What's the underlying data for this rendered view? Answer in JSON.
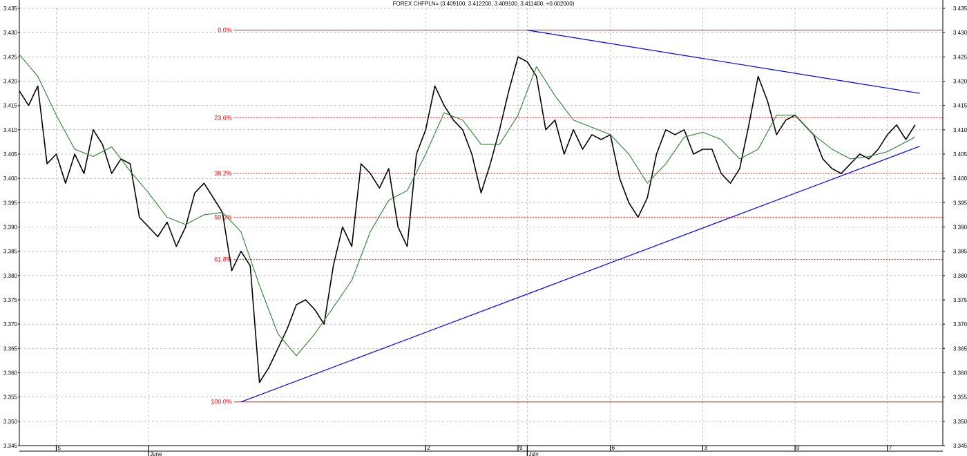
{
  "chart_data": {
    "type": "line",
    "title": "FOREX CHFPLN= (3.409100, 3.412200, 3.409100, 3.411400, +0.002000)",
    "ylim": [
      3.345,
      3.435
    ],
    "y_ticks": [
      "3.345",
      "3.350",
      "3.355",
      "3.360",
      "3.365",
      "3.370",
      "3.375",
      "3.380",
      "3.385",
      "3.390",
      "3.395",
      "3.400",
      "3.405",
      "3.410",
      "3.415",
      "3.420",
      "3.425",
      "3.430",
      "3.435"
    ],
    "x_day_labels": [
      {
        "label": "5",
        "t": 4
      },
      {
        "label": "2",
        "t": 44
      },
      {
        "label": "9",
        "t": 54
      },
      {
        "label": "6",
        "t": 64
      },
      {
        "label": "3",
        "t": 74
      },
      {
        "label": "0",
        "t": 84
      },
      {
        "label": "7",
        "t": 94
      }
    ],
    "x_month_labels": [
      {
        "label": "June",
        "t": 14
      },
      {
        "label": "July",
        "t": 55
      }
    ],
    "grid": true,
    "series": [
      {
        "name": "",
        "color": "#000000",
        "points": [
          [
            0,
            3.418
          ],
          [
            1,
            3.415
          ],
          [
            2,
            3.419
          ],
          [
            3,
            3.403
          ],
          [
            4,
            3.405
          ],
          [
            5,
            3.399
          ],
          [
            6,
            3.405
          ],
          [
            7,
            3.401
          ],
          [
            8,
            3.41
          ],
          [
            9,
            3.407
          ],
          [
            10,
            3.401
          ],
          [
            11,
            3.404
          ],
          [
            12,
            3.403
          ],
          [
            13,
            3.392
          ],
          [
            14,
            3.39
          ],
          [
            15,
            3.388
          ],
          [
            16,
            3.391
          ],
          [
            17,
            3.386
          ],
          [
            18,
            3.39
          ],
          [
            19,
            3.397
          ],
          [
            20,
            3.399
          ],
          [
            21,
            3.396
          ],
          [
            22,
            3.393
          ],
          [
            23,
            3.381
          ],
          [
            24,
            3.385
          ],
          [
            25,
            3.382
          ],
          [
            26,
            3.358
          ],
          [
            27,
            3.361
          ],
          [
            28,
            3.365
          ],
          [
            29,
            3.369
          ],
          [
            30,
            3.374
          ],
          [
            31,
            3.375
          ],
          [
            32,
            3.373
          ],
          [
            33,
            3.37
          ],
          [
            34,
            3.382
          ],
          [
            35,
            3.39
          ],
          [
            36,
            3.386
          ],
          [
            37,
            3.403
          ],
          [
            38,
            3.401
          ],
          [
            39,
            3.398
          ],
          [
            40,
            3.402
          ],
          [
            41,
            3.39
          ],
          [
            42,
            3.386
          ],
          [
            43,
            3.405
          ],
          [
            44,
            3.41
          ],
          [
            45,
            3.419
          ],
          [
            46,
            3.415
          ],
          [
            47,
            3.412
          ],
          [
            48,
            3.41
          ],
          [
            49,
            3.405
          ],
          [
            50,
            3.397
          ],
          [
            51,
            3.403
          ],
          [
            52,
            3.41
          ],
          [
            53,
            3.418
          ],
          [
            54,
            3.425
          ],
          [
            55,
            3.424
          ],
          [
            56,
            3.421
          ],
          [
            57,
            3.41
          ],
          [
            58,
            3.412
          ],
          [
            59,
            3.405
          ],
          [
            60,
            3.41
          ],
          [
            61,
            3.406
          ],
          [
            62,
            3.409
          ],
          [
            63,
            3.408
          ],
          [
            64,
            3.409
          ],
          [
            65,
            3.4
          ],
          [
            66,
            3.395
          ],
          [
            67,
            3.392
          ],
          [
            68,
            3.396
          ],
          [
            69,
            3.405
          ],
          [
            70,
            3.41
          ],
          [
            71,
            3.409
          ],
          [
            72,
            3.41
          ],
          [
            73,
            3.405
          ],
          [
            74,
            3.406
          ],
          [
            75,
            3.406
          ],
          [
            76,
            3.401
          ],
          [
            77,
            3.399
          ],
          [
            78,
            3.402
          ],
          [
            79,
            3.411
          ],
          [
            80,
            3.421
          ],
          [
            81,
            3.416
          ],
          [
            82,
            3.409
          ],
          [
            83,
            3.412
          ],
          [
            84,
            3.413
          ],
          [
            85,
            3.411
          ],
          [
            86,
            3.409
          ],
          [
            87,
            3.404
          ],
          [
            88,
            3.402
          ],
          [
            89,
            3.401
          ],
          [
            90,
            3.403
          ],
          [
            91,
            3.405
          ],
          [
            92,
            3.404
          ],
          [
            93,
            3.406
          ],
          [
            94,
            3.409
          ],
          [
            95,
            3.411
          ],
          [
            96,
            3.408
          ],
          [
            97,
            3.411
          ]
        ]
      },
      {
        "name": "",
        "color": "#2e7d32",
        "points": [
          [
            0,
            3.4255
          ],
          [
            2,
            3.421
          ],
          [
            4,
            3.413
          ],
          [
            6,
            3.406
          ],
          [
            8,
            3.4045
          ],
          [
            10,
            3.4065
          ],
          [
            12,
            3.4015
          ],
          [
            14,
            3.397
          ],
          [
            16,
            3.392
          ],
          [
            18,
            3.3905
          ],
          [
            20,
            3.3925
          ],
          [
            22,
            3.393
          ],
          [
            24,
            3.389
          ],
          [
            26,
            3.378
          ],
          [
            28,
            3.368
          ],
          [
            30,
            3.3635
          ],
          [
            32,
            3.368
          ],
          [
            34,
            3.3735
          ],
          [
            36,
            3.379
          ],
          [
            38,
            3.389
          ],
          [
            40,
            3.3955
          ],
          [
            42,
            3.3975
          ],
          [
            44,
            3.405
          ],
          [
            46,
            3.4135
          ],
          [
            48,
            3.412
          ],
          [
            50,
            3.407
          ],
          [
            52,
            3.407
          ],
          [
            54,
            3.413
          ],
          [
            56,
            3.423
          ],
          [
            58,
            3.417
          ],
          [
            60,
            3.412
          ],
          [
            62,
            3.4105
          ],
          [
            64,
            3.409
          ],
          [
            66,
            3.405
          ],
          [
            68,
            3.399
          ],
          [
            70,
            3.403
          ],
          [
            72,
            3.4085
          ],
          [
            74,
            3.4095
          ],
          [
            76,
            3.408
          ],
          [
            78,
            3.404
          ],
          [
            80,
            3.406
          ],
          [
            82,
            3.413
          ],
          [
            84,
            3.413
          ],
          [
            86,
            3.409
          ],
          [
            88,
            3.406
          ],
          [
            90,
            3.404
          ],
          [
            92,
            3.4045
          ],
          [
            94,
            3.4055
          ],
          [
            97,
            3.4085
          ]
        ]
      }
    ],
    "trendlines": [
      {
        "color": "#0000ff",
        "from": [
          24,
          3.354
        ],
        "to": [
          97.5,
          3.4066
        ]
      },
      {
        "color": "#0000ff",
        "from": [
          55,
          3.4305
        ],
        "to": [
          97.5,
          3.4175
        ]
      }
    ],
    "fibonacci": {
      "color": "#ff0000",
      "t_start": 21,
      "levels": [
        {
          "label": "0.0%",
          "value": 3.4305,
          "style": "solid"
        },
        {
          "label": "23.6%",
          "value": 3.4125,
          "style": "dashed"
        },
        {
          "label": "38.2%",
          "value": 3.401,
          "style": "dashed"
        },
        {
          "label": "50.0%",
          "value": 3.392,
          "style": "dashed"
        },
        {
          "label": "61.8%",
          "value": 3.3833,
          "style": "dashed"
        },
        {
          "label": "100.0%",
          "value": 3.354,
          "style": "solid"
        }
      ]
    }
  }
}
